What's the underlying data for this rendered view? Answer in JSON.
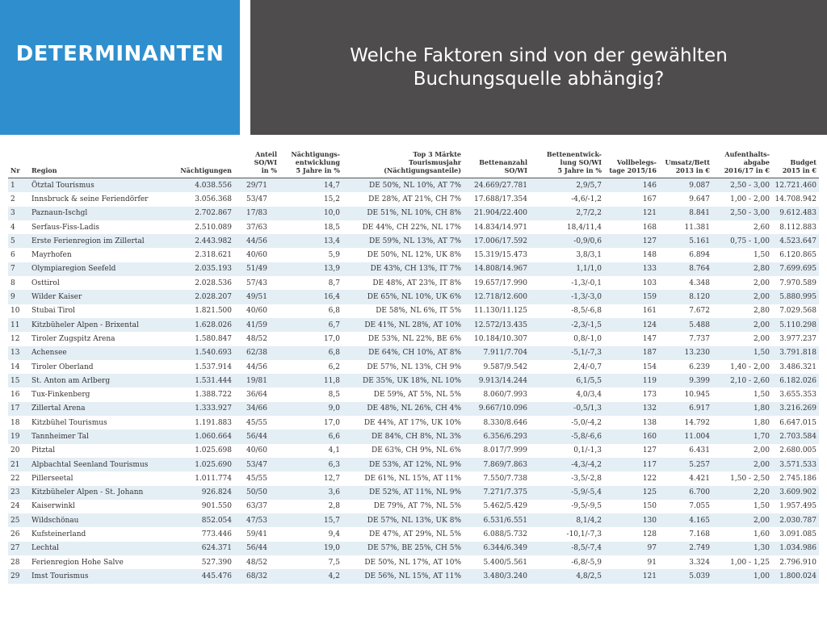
{
  "header": {
    "section": "DETERMINANTEN",
    "question_line1": "Welche Faktoren sind von der gewählten",
    "question_line2": "Buchungsquelle abhängig?"
  },
  "colors": {
    "blue": "#2f8fce",
    "dark": "#4e4c4d",
    "stripe": "#e4eef5"
  },
  "table": {
    "columns": [
      "Nr",
      "Region",
      "Nächtigungen",
      "Anteil\nSO/WI\nin %",
      "Nächtigungs-\nentwicklung\n5 Jahre in %",
      "Top 3 Märkte\nTourismusjahr\n(Nächtigungsanteile)",
      "Bettenanzahl\nSO/WI",
      "Bettenentwick-\nlung SO/WI\n5 Jahre in %",
      "Vollbelegs-\ntage 2015/16",
      "Umsatz/Bett\n2013 in €",
      "Aufenthalts-\nabgabe\n2016/17 in €",
      "Budget\n2015 in €"
    ],
    "rows": [
      [
        "1",
        "Ötztal Tourismus",
        "4.038.556",
        "29/71",
        "14,7",
        "DE 50%, NL 10%, AT 7%",
        "24.669/27.781",
        "2,9/5,7",
        "146",
        "9.087",
        "2,50 - 3,00",
        "12.721.460"
      ],
      [
        "2",
        "Innsbruck & seine Feriendörfer",
        "3.056.368",
        "53/47",
        "15,2",
        "DE 28%, AT 21%, CH 7%",
        "17.688/17.354",
        "-4,6/-1,2",
        "167",
        "9.647",
        "1,00 - 2,00",
        "14.708.942"
      ],
      [
        "3",
        "Paznaun-Ischgl",
        "2.702.867",
        "17/83",
        "10,0",
        "DE 51%, NL 10%, CH 8%",
        "21.904/22.400",
        "2,7/2,2",
        "121",
        "8.841",
        "2,50 - 3,00",
        "9.612.483"
      ],
      [
        "4",
        "Serfaus-Fiss-Ladis",
        "2.510.089",
        "37/63",
        "18,5",
        "DE 44%, CH 22%, NL 17%",
        "14.834/14.971",
        "18,4/11,4",
        "168",
        "11.381",
        "2,60",
        "8.112.883"
      ],
      [
        "5",
        "Erste Ferienregion im Zillertal",
        "2.443.982",
        "44/56",
        "13,4",
        "DE 59%, NL 13%, AT 7%",
        "17.006/17.592",
        "-0,9/0,6",
        "127",
        "5.161",
        "0,75 - 1,00",
        "4.523.647"
      ],
      [
        "6",
        "Mayrhofen",
        "2.318.621",
        "40/60",
        "5,9",
        "DE 50%, NL 12%, UK 8%",
        "15.319/15.473",
        "3,8/3,1",
        "148",
        "6.894",
        "1,50",
        "6.120.865"
      ],
      [
        "7",
        "Olympiaregion Seefeld",
        "2.035.193",
        "51/49",
        "13,9",
        "DE 43%, CH 13%, IT 7%",
        "14.808/14.967",
        "1,1/1,0",
        "133",
        "8.764",
        "2,80",
        "7.699.695"
      ],
      [
        "8",
        "Osttirol",
        "2.028.536",
        "57/43",
        "8,7",
        "DE 48%, AT 23%, IT 8%",
        "19.657/17.990",
        "-1,3/-0,1",
        "103",
        "4.348",
        "2,00",
        "7.970.589"
      ],
      [
        "9",
        "Wilder Kaiser",
        "2.028.207",
        "49/51",
        "16,4",
        "DE 65%, NL 10%, UK 6%",
        "12.718/12.600",
        "-1,3/-3,0",
        "159",
        "8.120",
        "2,00",
        "5.880.995"
      ],
      [
        "10",
        "Stubai Tirol",
        "1.821.500",
        "40/60",
        "6,8",
        "DE 58%, NL 6%, IT 5%",
        "11.130/11.125",
        "-8,5/-6,8",
        "161",
        "7.672",
        "2,80",
        "7.029.568"
      ],
      [
        "11",
        "Kitzbüheler Alpen - Brixental",
        "1.628.026",
        "41/59",
        "6,7",
        "DE 41%, NL 28%, AT 10%",
        "12.572/13.435",
        "-2,3/-1,5",
        "124",
        "5.488",
        "2,00",
        "5.110.298"
      ],
      [
        "12",
        "Tiroler Zugspitz Arena",
        "1.580.847",
        "48/52",
        "17,0",
        "DE 53%, NL 22%, BE 6%",
        "10.184/10.307",
        "0,8/-1,0",
        "147",
        "7.737",
        "2,00",
        "3.977.237"
      ],
      [
        "13",
        "Achensee",
        "1.540.693",
        "62/38",
        "6,8",
        "DE 64%, CH 10%, AT 8%",
        "7.911/7.704",
        "-5,1/-7,3",
        "187",
        "13.230",
        "1,50",
        "3.791.818"
      ],
      [
        "14",
        "Tiroler Oberland",
        "1.537.914",
        "44/56",
        "6,2",
        "DE 57%, NL 13%, CH 9%",
        "9.587/9.542",
        "2,4/-0,7",
        "154",
        "6.239",
        "1,40 - 2,00",
        "3.486.321"
      ],
      [
        "15",
        "St. Anton am Arlberg",
        "1.531.444",
        "19/81",
        "11,8",
        "DE 35%, UK 18%, NL 10%",
        "9.913/14.244",
        "6,1/5,5",
        "119",
        "9.399",
        "2,10 - 2,60",
        "6.182.026"
      ],
      [
        "16",
        "Tux-Finkenberg",
        "1.388.722",
        "36/64",
        "8,5",
        "DE 59%, AT 5%, NL 5%",
        "8.060/7.993",
        "4,0/3,4",
        "173",
        "10.945",
        "1,50",
        "3.655.353"
      ],
      [
        "17",
        "Zillertal Arena",
        "1.333.927",
        "34/66",
        "9,0",
        "DE 48%, NL 26%, CH 4%",
        "9.667/10.096",
        "-0,5/1,3",
        "132",
        "6.917",
        "1,80",
        "3.216.269"
      ],
      [
        "18",
        "Kitzbühel Tourismus",
        "1.191.883",
        "45/55",
        "17,0",
        "DE 44%, AT 17%, UK 10%",
        "8.330/8.646",
        "-5,0/-4,2",
        "138",
        "14.792",
        "1,80",
        "6.647.015"
      ],
      [
        "19",
        "Tannheimer Tal",
        "1.060.664",
        "56/44",
        "6,6",
        "DE 84%, CH 8%, NL 3%",
        "6.356/6.293",
        "-5,8/-6,6",
        "160",
        "11.004",
        "1,70",
        "2.703.584"
      ],
      [
        "20",
        "Pitztal",
        "1.025.698",
        "40/60",
        "4,1",
        "DE 63%, CH 9%, NL 6%",
        "8.017/7.999",
        "0,1/-1,3",
        "127",
        "6.431",
        "2,00",
        "2.680.005"
      ],
      [
        "21",
        "Alpbachtal Seenland Tourismus",
        "1.025.690",
        "53/47",
        "6,3",
        "DE 53%, AT 12%, NL 9%",
        "7.869/7.863",
        "-4,3/-4,2",
        "117",
        "5.257",
        "2,00",
        "3.571.533"
      ],
      [
        "22",
        "Pillerseetal",
        "1.011.774",
        "45/55",
        "12,7",
        "DE 61%, NL 15%, AT 11%",
        "7.550/7.738",
        "-3,5/-2,8",
        "122",
        "4.421",
        "1,50 - 2,50",
        "2.745.186"
      ],
      [
        "23",
        "Kitzbüheler Alpen - St. Johann",
        "926.824",
        "50/50",
        "3,6",
        "DE 52%, AT 11%, NL 9%",
        "7.271/7.375",
        "-5,9/-5,4",
        "125",
        "6.700",
        "2,20",
        "3.609.902"
      ],
      [
        "24",
        "Kaiserwinkl",
        "901.550",
        "63/37",
        "2,8",
        "DE 79%, AT 7%, NL 5%",
        "5.462/5.429",
        "-9,5/-9,5",
        "150",
        "7.055",
        "1,50",
        "1.957.495"
      ],
      [
        "25",
        "Wildschönau",
        "852.054",
        "47/53",
        "15,7",
        "DE 57%, NL 13%, UK 8%",
        "6.531/6.551",
        "8,1/4,2",
        "130",
        "4.165",
        "2,00",
        "2.030.787"
      ],
      [
        "26",
        "Kufsteinerland",
        "773.446",
        "59/41",
        "9,4",
        "DE 47%, AT 29%, NL 5%",
        "6.088/5.732",
        "-10,1/-7,3",
        "128",
        "7.168",
        "1,60",
        "3.091.085"
      ],
      [
        "27",
        "Lechtal",
        "624.371",
        "56/44",
        "19,0",
        "DE 57%, BE 25%, CH 5%",
        "6.344/6.349",
        "-8,5/-7,4",
        "97",
        "2.749",
        "1,30",
        "1.034.986"
      ],
      [
        "28",
        "Ferienregion Hohe Salve",
        "527.390",
        "48/52",
        "7,5",
        "DE 50%, NL 17%, AT 10%",
        "5.400/5.561",
        "-6,8/-5,9",
        "91",
        "3.324",
        "1,00 - 1,25",
        "2.796.910"
      ],
      [
        "29",
        "Imst Tourismus",
        "445.476",
        "68/32",
        "4,2",
        "DE 56%, NL 15%, AT 11%",
        "3.480/3.240",
        "4,8/2,5",
        "121",
        "5.039",
        "1,00",
        "1.800.024"
      ]
    ]
  }
}
